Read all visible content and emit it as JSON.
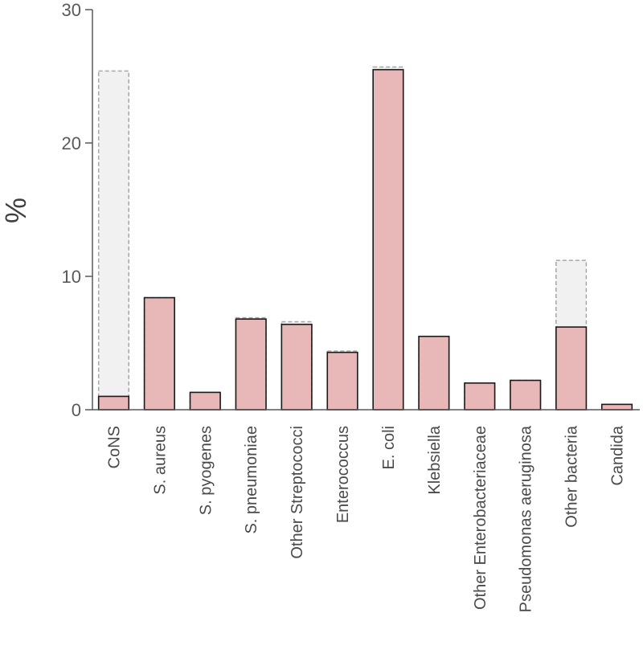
{
  "chart_data": {
    "type": "bar",
    "ylabel": "%",
    "ylim": [
      0,
      30
    ],
    "yticks": [
      "0",
      "10",
      "20",
      "30"
    ],
    "categories": [
      "CoNS",
      "S. aureus",
      "S. pyogenes",
      "S. pneumoniae",
      "Other Streptococci",
      "Enterococcus",
      "E. coli",
      "Klebsiella",
      "Other Enterobacteriaceae",
      "Pseudomonas aeruginosa",
      "Other bacteria",
      "Candida"
    ],
    "series": [
      {
        "values": [
          25.4,
          8.4,
          1.3,
          6.9,
          6.6,
          4.4,
          25.7,
          5.5,
          2.0,
          2.2,
          11.2,
          0.4
        ]
      },
      {
        "values": [
          1.0,
          8.4,
          1.3,
          6.8,
          6.4,
          4.3,
          25.5,
          5.5,
          2.0,
          2.2,
          6.2,
          0.4
        ]
      }
    ],
    "colors": {
      "bar_fill": "#e8b7b8",
      "bar_stroke": "#1a1a1a",
      "outline_fill": "#f1f1f1",
      "outline_stroke": "#a6a6a6",
      "axis": "#595959"
    },
    "grid": false
  }
}
